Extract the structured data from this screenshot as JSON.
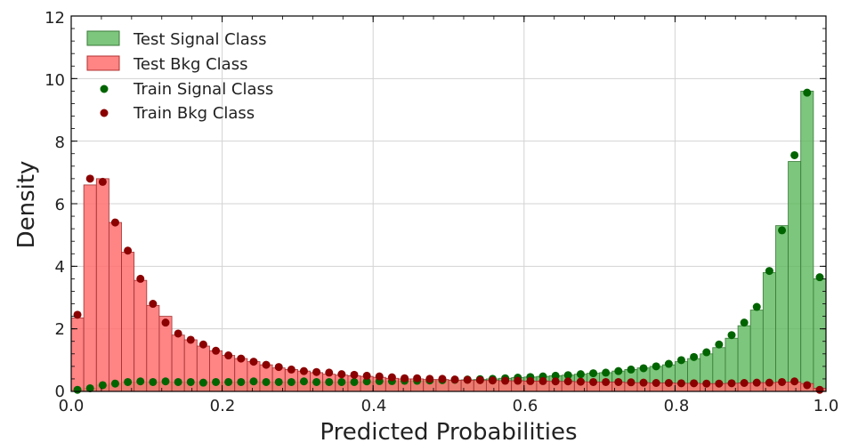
{
  "chart_data": {
    "type": "bar",
    "title": "",
    "xlabel": "Predicted Probabilities",
    "ylabel": "Density",
    "xlim": [
      0.0,
      1.0
    ],
    "ylim": [
      0,
      12
    ],
    "grid": true,
    "legend_position": "top-left",
    "x_ticks": [
      "0.0",
      "0.2",
      "0.4",
      "0.6",
      "0.8",
      "1.0"
    ],
    "y_ticks": [
      "0",
      "2",
      "4",
      "6",
      "8",
      "10",
      "12"
    ],
    "bin_width": 0.01667,
    "bin_centers": [
      0.0083,
      0.025,
      0.0417,
      0.0583,
      0.075,
      0.0917,
      0.1083,
      0.125,
      0.1417,
      0.1583,
      0.175,
      0.1917,
      0.2083,
      0.225,
      0.2417,
      0.2583,
      0.275,
      0.2917,
      0.3083,
      0.325,
      0.3417,
      0.3583,
      0.375,
      0.3917,
      0.4083,
      0.425,
      0.4417,
      0.4583,
      0.475,
      0.4917,
      0.5083,
      0.525,
      0.5417,
      0.5583,
      0.575,
      0.5917,
      0.6083,
      0.625,
      0.6417,
      0.6583,
      0.675,
      0.6917,
      0.7083,
      0.725,
      0.7417,
      0.7583,
      0.775,
      0.7917,
      0.8083,
      0.825,
      0.8417,
      0.8583,
      0.875,
      0.8917,
      0.9083,
      0.925,
      0.9417,
      0.9583,
      0.975,
      0.9917
    ],
    "series": [
      {
        "name": "Test Signal Class",
        "kind": "histogram",
        "color": "#5cb85c",
        "values": [
          0.05,
          0.1,
          0.2,
          0.25,
          0.3,
          0.3,
          0.3,
          0.3,
          0.3,
          0.3,
          0.3,
          0.3,
          0.3,
          0.3,
          0.3,
          0.3,
          0.3,
          0.3,
          0.3,
          0.3,
          0.3,
          0.3,
          0.3,
          0.3,
          0.32,
          0.32,
          0.33,
          0.33,
          0.34,
          0.35,
          0.36,
          0.37,
          0.38,
          0.4,
          0.42,
          0.44,
          0.46,
          0.48,
          0.5,
          0.52,
          0.55,
          0.58,
          0.6,
          0.65,
          0.7,
          0.75,
          0.8,
          0.85,
          0.95,
          1.05,
          1.2,
          1.4,
          1.7,
          2.1,
          2.6,
          3.8,
          5.3,
          7.35,
          9.6,
          3.6
        ]
      },
      {
        "name": "Test Bkg Class",
        "kind": "histogram",
        "color": "#ff6f6f",
        "values": [
          2.35,
          6.6,
          6.8,
          5.4,
          4.45,
          3.55,
          2.75,
          2.4,
          1.8,
          1.65,
          1.45,
          1.3,
          1.15,
          1.05,
          0.95,
          0.85,
          0.75,
          0.7,
          0.65,
          0.6,
          0.55,
          0.52,
          0.5,
          0.48,
          0.45,
          0.42,
          0.4,
          0.4,
          0.38,
          0.38,
          0.36,
          0.36,
          0.35,
          0.35,
          0.34,
          0.34,
          0.33,
          0.33,
          0.32,
          0.32,
          0.31,
          0.3,
          0.3,
          0.3,
          0.28,
          0.28,
          0.27,
          0.27,
          0.26,
          0.26,
          0.25,
          0.25,
          0.26,
          0.27,
          0.28,
          0.28,
          0.3,
          0.3,
          0.25,
          0.1
        ]
      },
      {
        "name": "Train Signal Class",
        "kind": "scatter",
        "color": "#006400",
        "values": [
          0.05,
          0.1,
          0.2,
          0.25,
          0.3,
          0.32,
          0.3,
          0.32,
          0.3,
          0.3,
          0.28,
          0.3,
          0.3,
          0.3,
          0.32,
          0.3,
          0.3,
          0.3,
          0.32,
          0.3,
          0.3,
          0.3,
          0.3,
          0.32,
          0.33,
          0.33,
          0.34,
          0.34,
          0.35,
          0.36,
          0.37,
          0.38,
          0.39,
          0.4,
          0.42,
          0.44,
          0.46,
          0.48,
          0.5,
          0.52,
          0.55,
          0.58,
          0.6,
          0.65,
          0.7,
          0.74,
          0.8,
          0.88,
          1.0,
          1.1,
          1.25,
          1.5,
          1.8,
          2.2,
          2.7,
          3.85,
          5.15,
          7.55,
          9.55,
          3.65
        ]
      },
      {
        "name": "Train Bkg Class",
        "kind": "scatter",
        "color": "#8b0000",
        "values": [
          2.45,
          6.8,
          6.7,
          5.4,
          4.5,
          3.6,
          2.8,
          2.2,
          1.85,
          1.65,
          1.5,
          1.3,
          1.15,
          1.05,
          0.95,
          0.85,
          0.78,
          0.7,
          0.65,
          0.62,
          0.6,
          0.55,
          0.53,
          0.5,
          0.48,
          0.45,
          0.42,
          0.42,
          0.4,
          0.4,
          0.38,
          0.37,
          0.36,
          0.35,
          0.34,
          0.34,
          0.33,
          0.33,
          0.32,
          0.32,
          0.31,
          0.3,
          0.3,
          0.3,
          0.29,
          0.28,
          0.27,
          0.27,
          0.26,
          0.26,
          0.25,
          0.25,
          0.26,
          0.27,
          0.28,
          0.28,
          0.3,
          0.32,
          0.2,
          0.05
        ]
      }
    ]
  }
}
